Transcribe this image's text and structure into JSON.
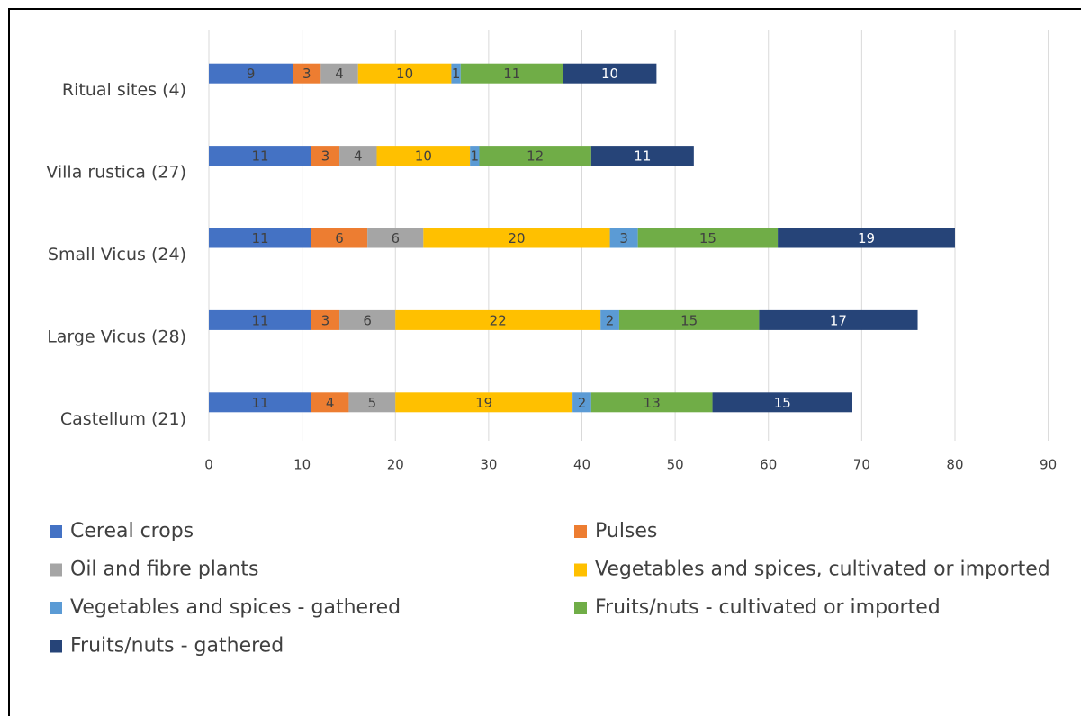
{
  "chart_data": {
    "type": "stacked-barh",
    "categories": [
      "Castellum (21)",
      "Large Vicus (28)",
      "Small Vicus (24)",
      "Villa rustica (27)",
      "Ritual sites (4)"
    ],
    "series": [
      {
        "name": "Cereal crops",
        "color": "#4472c4",
        "values": [
          11,
          11,
          11,
          11,
          9
        ]
      },
      {
        "name": "Pulses",
        "color": "#ed7d31",
        "values": [
          4,
          3,
          6,
          3,
          3
        ]
      },
      {
        "name": "Oil and fibre plants",
        "color": "#a5a5a5",
        "values": [
          5,
          6,
          6,
          4,
          4
        ]
      },
      {
        "name": "Vegetables and spices, cultivated or imported",
        "color": "#ffc000",
        "values": [
          19,
          22,
          20,
          10,
          10
        ]
      },
      {
        "name": "Vegetables and spices - gathered",
        "color": "#5b9bd5",
        "values": [
          2,
          2,
          3,
          1,
          1
        ]
      },
      {
        "name": "Fruits/nuts - cultivated or imported",
        "color": "#70ad47",
        "values": [
          13,
          15,
          15,
          12,
          11
        ]
      },
      {
        "name": "Fruits/nuts - gathered",
        "color": "#264478",
        "values": [
          15,
          17,
          19,
          11,
          10
        ]
      }
    ],
    "xlim": [
      0,
      90
    ],
    "xticks": [
      0,
      10,
      20,
      30,
      40,
      50,
      60,
      70,
      80,
      90
    ],
    "grid": true
  }
}
